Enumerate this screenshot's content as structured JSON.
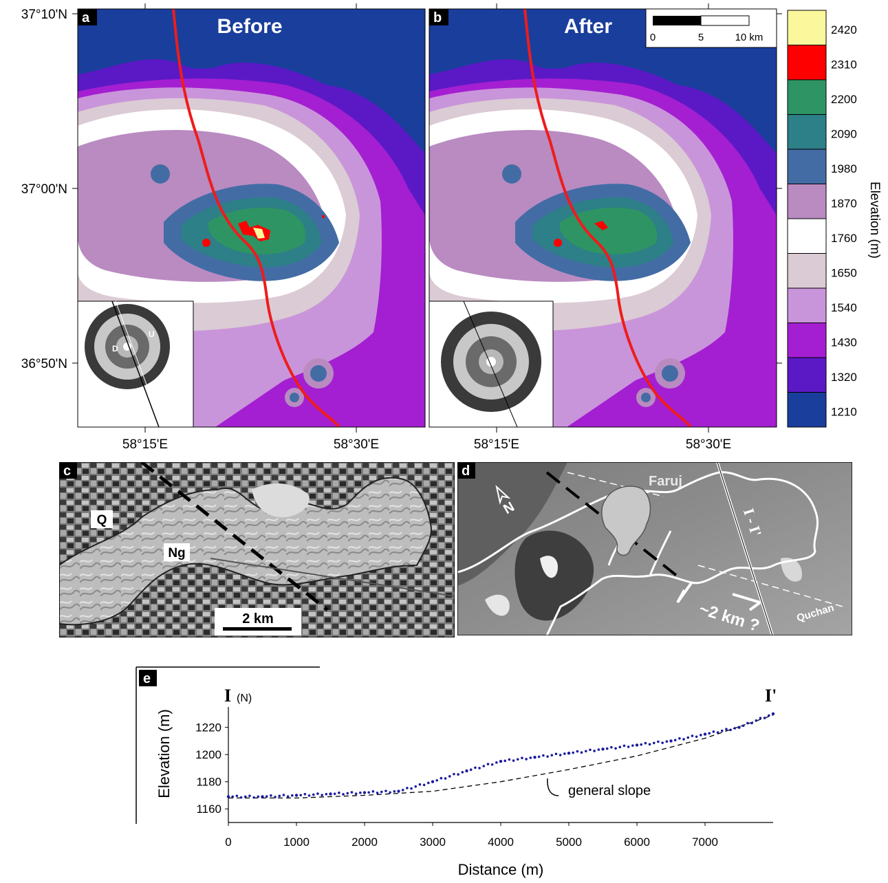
{
  "panels": {
    "a": {
      "letter": "a",
      "title": "Before",
      "inset": {
        "down": "D",
        "up": "U"
      }
    },
    "b": {
      "letter": "b",
      "title": "After"
    },
    "c": {
      "letter": "c",
      "units": {
        "q": "Q",
        "ng": "Ng"
      },
      "scale": "2 km"
    },
    "d": {
      "letter": "d",
      "town": "Faruj",
      "north": "N",
      "profile": "I - I'",
      "offset": "~2 km ?",
      "road": "Quchan"
    },
    "e": {
      "letter": "e",
      "start": "I",
      "start_dir": "(N)",
      "end": "I'",
      "annotation": "general slope"
    }
  },
  "map_axes": {
    "lat_ticks": [
      "37°10'N",
      "37°00'N",
      "36°50'N"
    ],
    "lon_ticks": [
      "58°15'E",
      "58°30'E"
    ]
  },
  "scale_bar": {
    "labels": [
      "0",
      "5",
      "10 km"
    ]
  },
  "legend": {
    "title": "Elevation (m)",
    "classes": [
      {
        "label": "2420",
        "color": "#fbf79d"
      },
      {
        "label": "2310",
        "color": "#ff0000"
      },
      {
        "label": "2200",
        "color": "#2e9463"
      },
      {
        "label": "2090",
        "color": "#2d7f88"
      },
      {
        "label": "1980",
        "color": "#436ca5"
      },
      {
        "label": "1870",
        "color": "#b98bc1"
      },
      {
        "label": "1760",
        "color": "#ffffff"
      },
      {
        "label": "1650",
        "color": "#dbcbd4"
      },
      {
        "label": "1540",
        "color": "#c995da"
      },
      {
        "label": "1430",
        "color": "#a41fd1"
      },
      {
        "label": "1320",
        "color": "#5b19c6"
      },
      {
        "label": "1210",
        "color": "#1a3e9c"
      }
    ]
  },
  "colors": {
    "fault": "#ee1c1c",
    "profile_points": "#1a1aa0"
  },
  "chart_data": {
    "type": "scatter",
    "title": "",
    "xlabel": "Distance (m)",
    "ylabel": "Elevation (m)",
    "xlim": [
      0,
      8000
    ],
    "ylim": [
      1150,
      1232
    ],
    "x_ticks": [
      "0",
      "1000",
      "2000",
      "3000",
      "4000",
      "5000",
      "6000",
      "7000"
    ],
    "y_ticks": [
      "1160",
      "1180",
      "1200",
      "1220"
    ],
    "series": [
      {
        "x": [
          0,
          500,
          1000,
          1500,
          2000,
          2500,
          3000,
          3500,
          4000,
          4500,
          5000,
          5500,
          6000,
          6500,
          7000,
          7500,
          8000
        ],
        "values": [
          1169,
          1169,
          1170,
          1171,
          1172,
          1173,
          1180,
          1188,
          1195,
          1198,
          1201,
          1204,
          1207,
          1210,
          1215,
          1220,
          1230
        ]
      },
      {
        "name": "general slope",
        "x": [
          0,
          1000,
          2000,
          3000,
          4000,
          5000,
          6000,
          7000,
          8000
        ],
        "values": [
          1168,
          1168,
          1170,
          1173,
          1180,
          1189,
          1199,
          1212,
          1229
        ]
      }
    ],
    "grid": false
  }
}
